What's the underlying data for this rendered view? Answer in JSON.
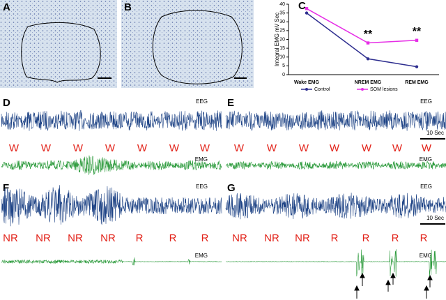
{
  "chart_data": {
    "type": "line",
    "ylabel": "Integral EMG mV Sec",
    "categories": [
      "Wake EMG",
      "NREM EMG",
      "REM EMG"
    ],
    "series": [
      {
        "name": "Control",
        "color": "#2e2e8f",
        "values": [
          35,
          9,
          4.5
        ]
      },
      {
        "name": "SOM lesions",
        "color": "#e62ee6",
        "values": [
          37.5,
          18,
          19.5
        ]
      }
    ],
    "ylim": [
      0,
      40
    ],
    "yticks": [
      0,
      5,
      10,
      15,
      20,
      25,
      30,
      35,
      40
    ],
    "annotations": [
      "**",
      "**"
    ],
    "legend": "bottom"
  },
  "panel_labels": {
    "A": "A",
    "B": "B",
    "C": "C"
  },
  "panels": {
    "D": {
      "label": "D",
      "eeg": "EEG",
      "emg": "EMG",
      "states": [
        "W",
        "W",
        "W",
        "W",
        "W",
        "W",
        "W"
      ]
    },
    "E": {
      "label": "E",
      "eeg": "EEG",
      "emg": "EMG",
      "scale": "10 Sec",
      "states": [
        "W",
        "W",
        "W",
        "W",
        "W",
        "W",
        "W"
      ]
    },
    "F": {
      "label": "F",
      "eeg": "EEG",
      "emg": "EMG",
      "states": [
        "NR",
        "NR",
        "NR",
        "NR",
        "R",
        "R",
        "R"
      ]
    },
    "G": {
      "label": "G",
      "eeg": "EEG",
      "emg": "EMG",
      "scale": "10 Sec",
      "states": [
        "NR",
        "NR",
        "NR",
        "R",
        "R",
        "R",
        "R"
      ]
    }
  }
}
